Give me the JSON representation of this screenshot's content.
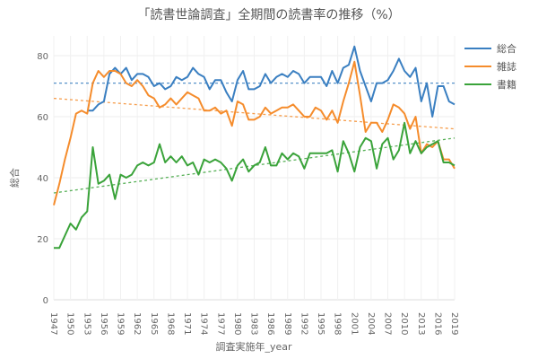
{
  "chart_data": {
    "type": "line",
    "title": "「読書世論調査」全期間の読書率の推移（%）",
    "xlabel": "調査実施年_year",
    "ylabel": "総合",
    "ylim": [
      0,
      85
    ],
    "xlim": [
      1947,
      2019
    ],
    "yticks": [
      0,
      20,
      40,
      60,
      80
    ],
    "xticks": [
      1947,
      1950,
      1953,
      1956,
      1959,
      1962,
      1965,
      1968,
      1971,
      1974,
      1977,
      1980,
      1983,
      1986,
      1989,
      1992,
      1995,
      1998,
      2001,
      2004,
      2007,
      2010,
      2013,
      2016,
      2019
    ],
    "grid": true,
    "legend_position": "right-top",
    "x": [
      1947,
      1948,
      1949,
      1950,
      1951,
      1952,
      1953,
      1954,
      1955,
      1956,
      1957,
      1958,
      1959,
      1960,
      1961,
      1962,
      1963,
      1964,
      1965,
      1966,
      1967,
      1968,
      1969,
      1970,
      1971,
      1972,
      1973,
      1974,
      1975,
      1976,
      1977,
      1978,
      1979,
      1980,
      1981,
      1982,
      1983,
      1984,
      1985,
      1986,
      1987,
      1988,
      1989,
      1990,
      1991,
      1992,
      1993,
      1994,
      1995,
      1996,
      1997,
      1998,
      1999,
      2000,
      2001,
      2002,
      2003,
      2004,
      2005,
      2006,
      2007,
      2008,
      2009,
      2010,
      2011,
      2012,
      2013,
      2014,
      2015,
      2016,
      2017,
      2018,
      2019
    ],
    "series": [
      {
        "name": "総合",
        "color": "#3a7fc1",
        "values": [
          null,
          null,
          null,
          null,
          null,
          null,
          62,
          62,
          64,
          65,
          74,
          76,
          74,
          76,
          72,
          74,
          74,
          73,
          70,
          71,
          69,
          70,
          73,
          72,
          73,
          76,
          74,
          73,
          69,
          72,
          72,
          68,
          65,
          72,
          75,
          69,
          69,
          70,
          74,
          71,
          73,
          74,
          73,
          75,
          74,
          71,
          73,
          73,
          73,
          70,
          75,
          71,
          76,
          77,
          83,
          75,
          70,
          65,
          71,
          71,
          72,
          75,
          79,
          75,
          73,
          76,
          65,
          71,
          60,
          70,
          70,
          65,
          64
        ],
        "trend": {
          "start": 71,
          "end": 71
        }
      },
      {
        "name": "雑誌",
        "color": "#f58c2c",
        "values": [
          31,
          38,
          46,
          53,
          61,
          62,
          61,
          71,
          75,
          73,
          75,
          75,
          74,
          71,
          70,
          72,
          70,
          67,
          66,
          63,
          64,
          66,
          64,
          66,
          68,
          67,
          66,
          62,
          62,
          63,
          61,
          62,
          57,
          65,
          64,
          59,
          59,
          60,
          63,
          61,
          62,
          63,
          63,
          64,
          62,
          60,
          60,
          63,
          62,
          59,
          62,
          58,
          65,
          71,
          78,
          67,
          55,
          58,
          58,
          55,
          59,
          64,
          63,
          61,
          56,
          60,
          48,
          51,
          50,
          52,
          46,
          46,
          43
        ],
        "trend": {
          "start": 66,
          "end": 56
        }
      },
      {
        "name": "書籍",
        "color": "#3aa33a",
        "values": [
          17,
          17,
          21,
          25,
          23,
          27,
          29,
          50,
          38,
          39,
          41,
          33,
          41,
          40,
          41,
          44,
          45,
          44,
          45,
          51,
          45,
          47,
          45,
          47,
          44,
          45,
          41,
          46,
          45,
          46,
          45,
          43,
          39,
          44,
          46,
          42,
          44,
          45,
          50,
          44,
          44,
          48,
          46,
          48,
          47,
          43,
          48,
          48,
          48,
          48,
          49,
          42,
          52,
          48,
          42,
          50,
          53,
          52,
          43,
          51,
          53,
          46,
          49,
          58,
          48,
          52,
          48,
          50,
          51,
          52,
          45,
          45,
          44
        ],
        "trend": {
          "start": 35,
          "end": 53
        }
      }
    ]
  },
  "legend": {
    "items": [
      {
        "label": "総合",
        "color": "#3a7fc1"
      },
      {
        "label": "雑誌",
        "color": "#f58c2c"
      },
      {
        "label": "書籍",
        "color": "#3aa33a"
      }
    ]
  }
}
